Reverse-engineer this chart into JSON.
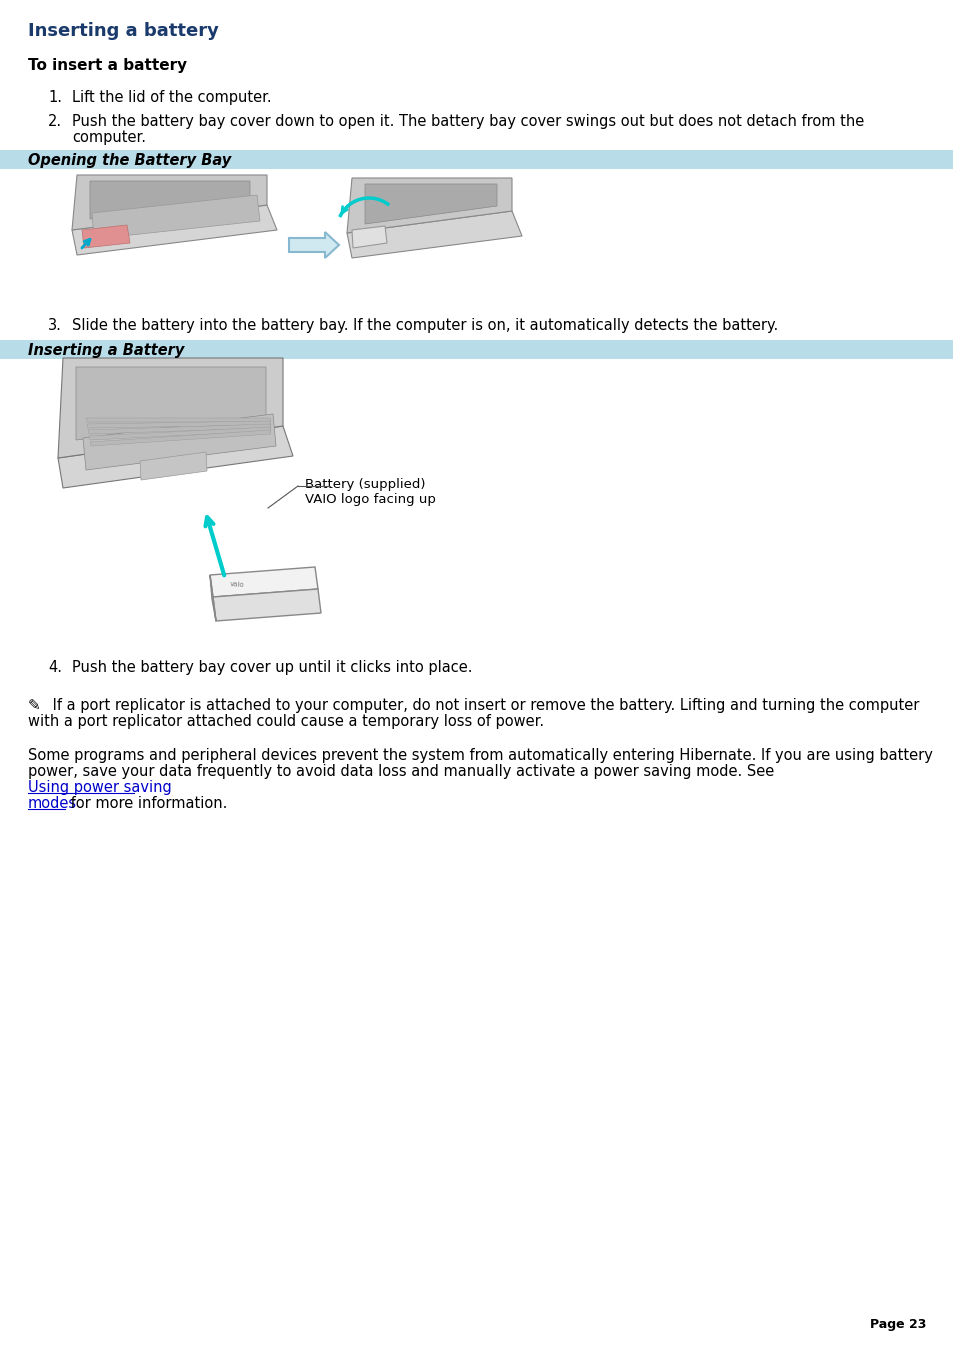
{
  "title": "Inserting a battery",
  "title_color": "#1a3a6b",
  "background_color": "#ffffff",
  "section_header_bg": "#b8dce8",
  "body_text_color": "#000000",
  "page_number": "Page 23",
  "section1_header": "Opening the Battery Bay",
  "section2_header": "Inserting a Battery",
  "subtitle": "To insert a battery",
  "step1": "Lift the lid of the computer.",
  "step2_line1": "Push the battery bay cover down to open it. The battery bay cover swings out but does not detach from the",
  "step2_line2": "computer.",
  "step3": "Slide the battery into the battery bay. If the computer is on, it automatically detects the battery.",
  "step4": "Push the battery bay cover up until it clicks into place.",
  "note1_line1": " If a port replicator is attached to your computer, do not insert or remove the battery. Lifting and turning the computer",
  "note1_line2": "with a port replicator attached could cause a temporary loss of power.",
  "note2_line1": "Some programs and peripheral devices prevent the system from automatically entering Hibernate. If you are using battery",
  "note2_line2": "power, save your data frequently to avoid data loss and manually activate a power saving mode. See ",
  "note2_link1": "Using power saving",
  "note2_line3": "modes",
  "note2_suffix": " for more information.",
  "battery_label1": "Battery (supplied)",
  "battery_label2": "VAIO logo facing up",
  "link_color": "#0000cc",
  "font_size_body": 10.5,
  "font_size_title": 13,
  "font_size_subtitle": 11,
  "font_size_section": 10.5,
  "font_size_page": 9
}
